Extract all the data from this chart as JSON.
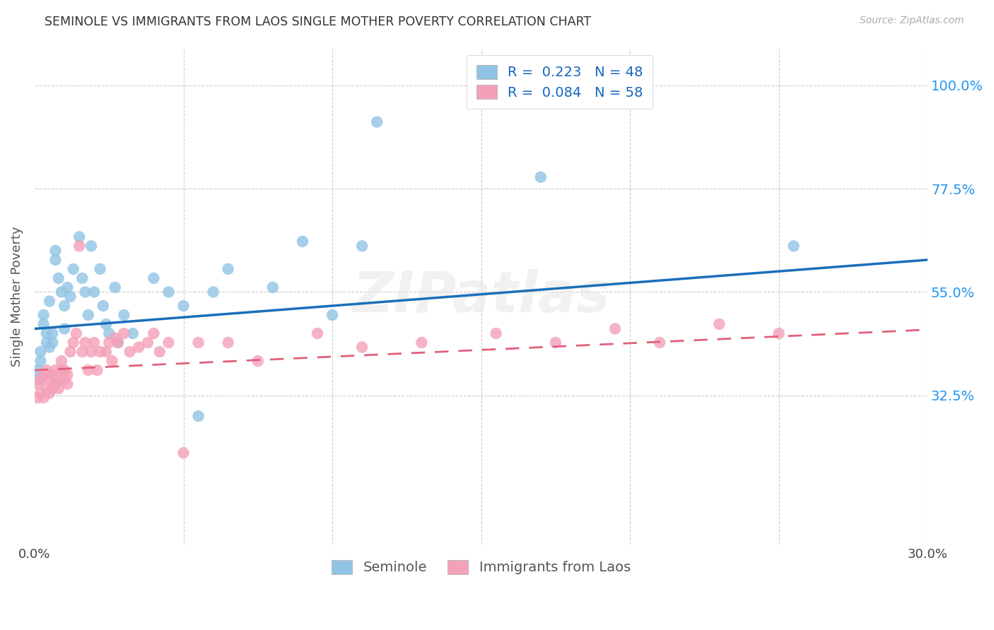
{
  "title": "SEMINOLE VS IMMIGRANTS FROM LAOS SINGLE MOTHER POVERTY CORRELATION CHART",
  "source": "Source: ZipAtlas.com",
  "ylabel": "Single Mother Poverty",
  "yticks": [
    0.325,
    0.55,
    0.775,
    1.0
  ],
  "ytick_labels": [
    "32.5%",
    "55.0%",
    "77.5%",
    "100.0%"
  ],
  "xmin": 0.0,
  "xmax": 0.3,
  "ymin": 0.0,
  "ymax": 1.08,
  "background_color": "#ffffff",
  "blue_color": "#90c4e4",
  "pink_color": "#f4a0b8",
  "blue_line_color": "#1a6fba",
  "pink_line_color": "#e0607a",
  "legend_label_blue": "Seminole",
  "legend_label_pink": "Immigrants from Laos",
  "blue_line_x0": 0.0,
  "blue_line_y0": 0.47,
  "blue_line_x1": 0.3,
  "blue_line_y1": 0.62,
  "pink_line_x0": 0.0,
  "pink_line_y0": 0.38,
  "pink_line_x1": 0.3,
  "pink_line_y1": 0.468,
  "seminole_x": [
    0.001,
    0.001,
    0.002,
    0.002,
    0.003,
    0.003,
    0.004,
    0.004,
    0.005,
    0.005,
    0.006,
    0.006,
    0.007,
    0.007,
    0.008,
    0.009,
    0.01,
    0.01,
    0.011,
    0.012,
    0.013,
    0.015,
    0.016,
    0.017,
    0.018,
    0.019,
    0.02,
    0.022,
    0.023,
    0.024,
    0.025,
    0.027,
    0.028,
    0.03,
    0.033,
    0.04,
    0.045,
    0.05,
    0.055,
    0.06,
    0.065,
    0.08,
    0.09,
    0.1,
    0.11,
    0.115,
    0.17,
    0.255
  ],
  "seminole_y": [
    0.38,
    0.36,
    0.4,
    0.42,
    0.48,
    0.5,
    0.44,
    0.46,
    0.43,
    0.53,
    0.46,
    0.44,
    0.62,
    0.64,
    0.58,
    0.55,
    0.52,
    0.47,
    0.56,
    0.54,
    0.6,
    0.67,
    0.58,
    0.55,
    0.5,
    0.65,
    0.55,
    0.6,
    0.52,
    0.48,
    0.46,
    0.56,
    0.44,
    0.5,
    0.46,
    0.58,
    0.55,
    0.52,
    0.28,
    0.55,
    0.6,
    0.56,
    0.66,
    0.5,
    0.65,
    0.92,
    0.8,
    0.65
  ],
  "laos_x": [
    0.001,
    0.001,
    0.002,
    0.002,
    0.003,
    0.003,
    0.004,
    0.004,
    0.005,
    0.005,
    0.006,
    0.006,
    0.007,
    0.007,
    0.008,
    0.008,
    0.009,
    0.009,
    0.01,
    0.01,
    0.011,
    0.011,
    0.012,
    0.013,
    0.014,
    0.015,
    0.016,
    0.017,
    0.018,
    0.019,
    0.02,
    0.021,
    0.022,
    0.024,
    0.025,
    0.026,
    0.027,
    0.028,
    0.03,
    0.032,
    0.035,
    0.038,
    0.04,
    0.042,
    0.045,
    0.05,
    0.055,
    0.065,
    0.075,
    0.095,
    0.11,
    0.13,
    0.155,
    0.175,
    0.195,
    0.21,
    0.23,
    0.25
  ],
  "laos_y": [
    0.32,
    0.35,
    0.33,
    0.36,
    0.32,
    0.37,
    0.34,
    0.38,
    0.33,
    0.36,
    0.34,
    0.37,
    0.35,
    0.38,
    0.34,
    0.36,
    0.38,
    0.4,
    0.36,
    0.38,
    0.35,
    0.37,
    0.42,
    0.44,
    0.46,
    0.65,
    0.42,
    0.44,
    0.38,
    0.42,
    0.44,
    0.38,
    0.42,
    0.42,
    0.44,
    0.4,
    0.45,
    0.44,
    0.46,
    0.42,
    0.43,
    0.44,
    0.46,
    0.42,
    0.44,
    0.2,
    0.44,
    0.44,
    0.4,
    0.46,
    0.43,
    0.44,
    0.46,
    0.44,
    0.47,
    0.44,
    0.48,
    0.46
  ]
}
